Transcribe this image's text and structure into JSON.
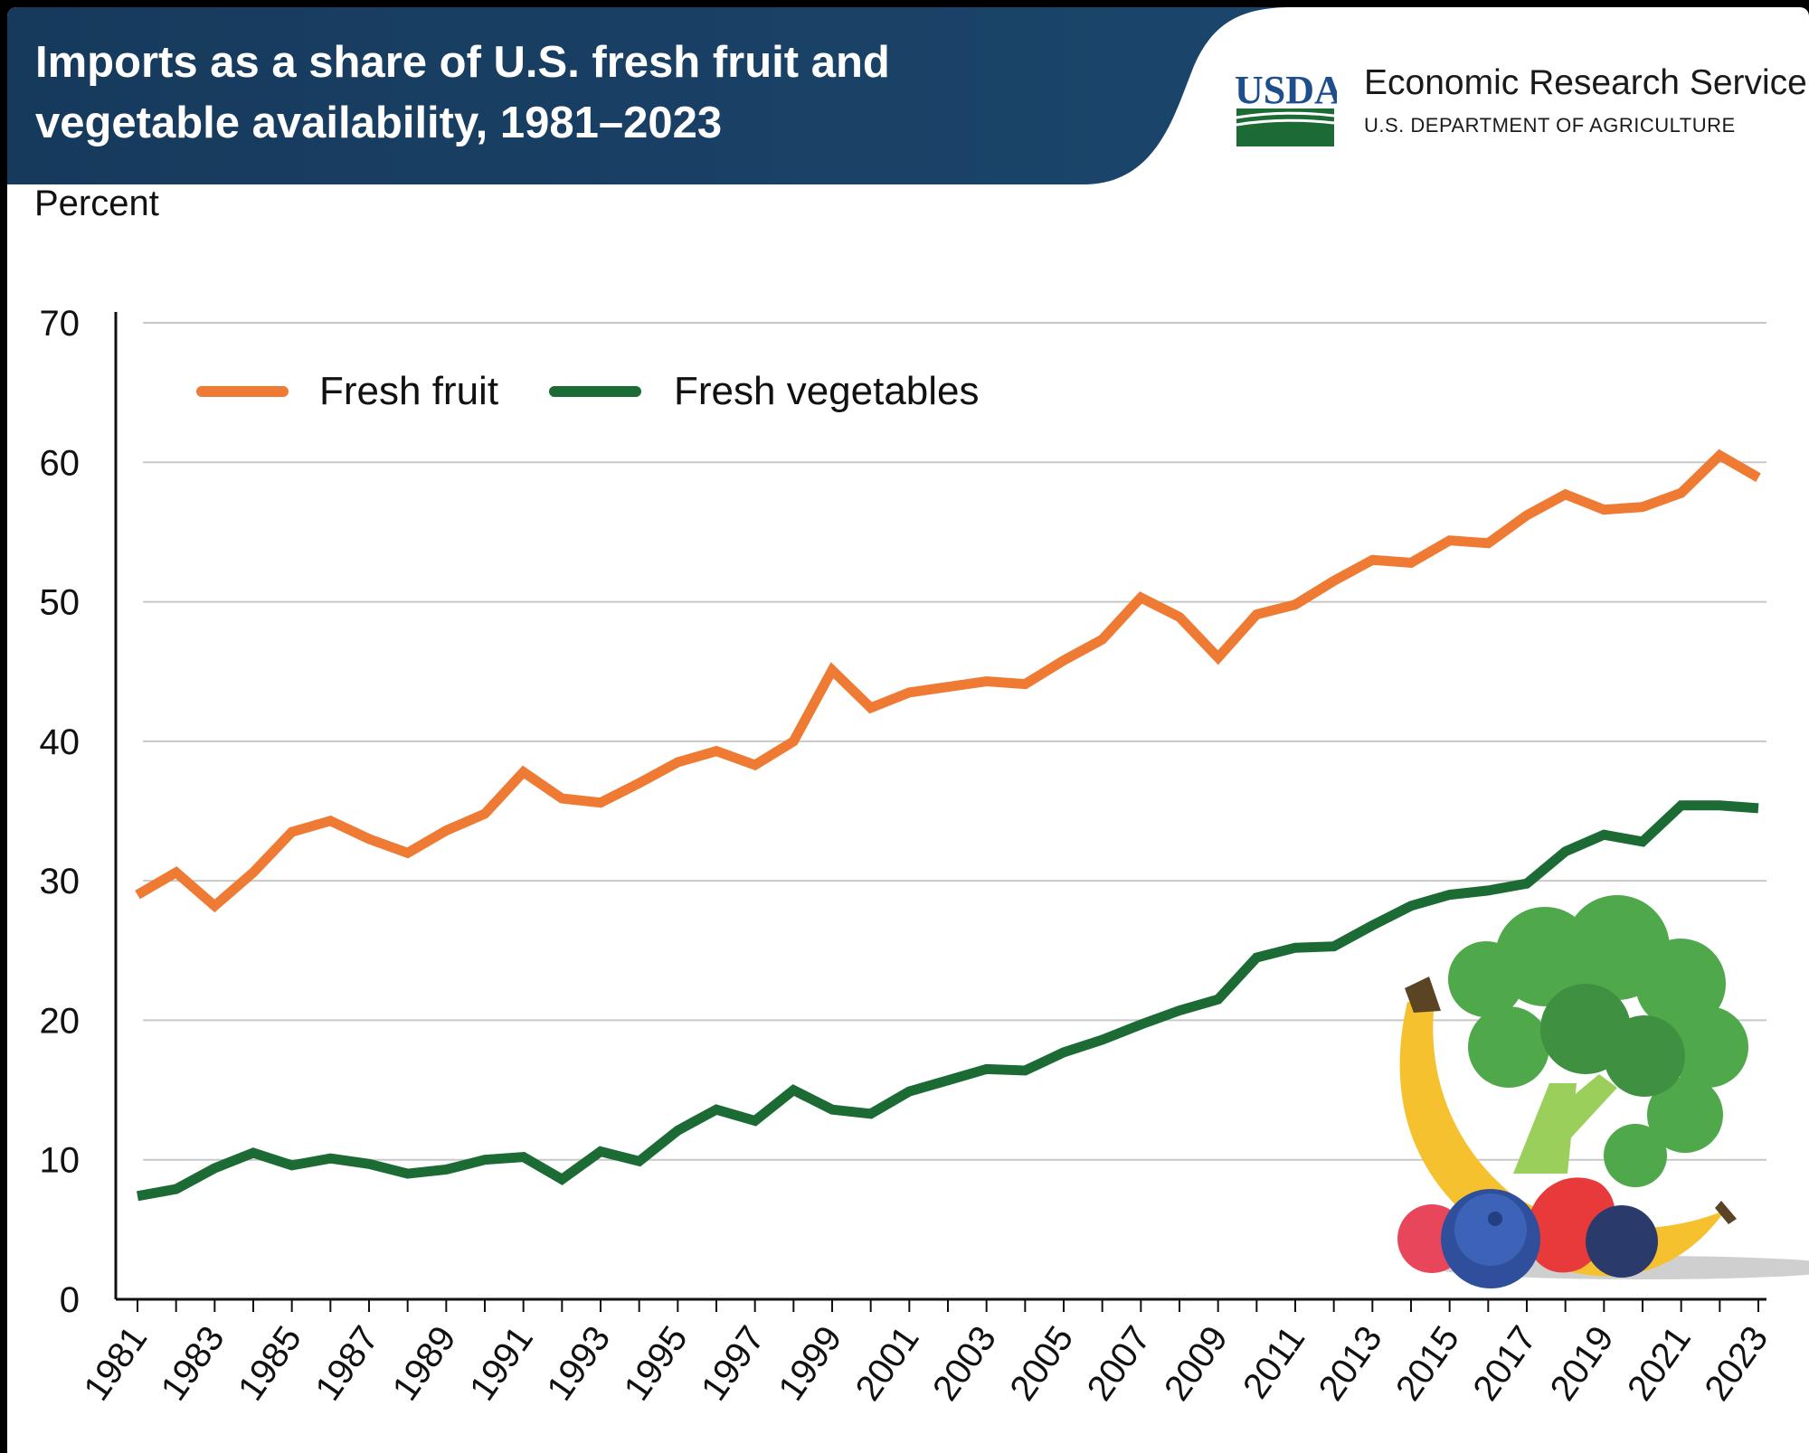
{
  "header": {
    "title": "Imports as a share of U.S. fresh fruit and vegetable availability, 1981–2023",
    "logo_text": "USDA",
    "agency_name": "Economic Research Service",
    "department": "U.S. DEPARTMENT OF AGRICULTURE"
  },
  "colors": {
    "header_bg": "#163a5c",
    "fruit": "#ee7a34",
    "vegetables": "#1c6b34",
    "grid": "#c8c8c8",
    "usda_blue": "#1f4e8c",
    "usda_green": "#1c6b34"
  },
  "chart_data": {
    "type": "line",
    "title": "Imports as a share of U.S. fresh fruit and vegetable availability, 1981–2023",
    "ylabel": "Percent",
    "xlabel": "",
    "ylim": [
      0,
      70
    ],
    "yticks": [
      0,
      10,
      20,
      30,
      40,
      50,
      60,
      70
    ],
    "grid": true,
    "legend": "top-left",
    "x": [
      1981,
      1982,
      1983,
      1984,
      1985,
      1986,
      1987,
      1988,
      1989,
      1990,
      1991,
      1992,
      1993,
      1994,
      1995,
      1996,
      1997,
      1998,
      1999,
      2000,
      2001,
      2002,
      2003,
      2004,
      2005,
      2006,
      2007,
      2008,
      2009,
      2010,
      2011,
      2012,
      2013,
      2014,
      2015,
      2016,
      2017,
      2018,
      2019,
      2020,
      2021,
      2022,
      2023
    ],
    "xticks": [
      "1981",
      "1983",
      "1985",
      "1987",
      "1989",
      "1991",
      "1993",
      "1995",
      "1997",
      "1999",
      "2001",
      "2003",
      "2005",
      "2007",
      "2009",
      "2011",
      "2013",
      "2015",
      "2017",
      "2019",
      "2021",
      "2023"
    ],
    "series": [
      {
        "name": "Fresh fruit",
        "values": [
          29.0,
          30.6,
          28.2,
          30.6,
          33.5,
          34.3,
          33.0,
          32.0,
          33.6,
          34.8,
          37.8,
          35.9,
          35.6,
          37.0,
          38.5,
          39.3,
          38.3,
          40.0,
          45.1,
          42.4,
          43.5,
          43.9,
          44.3,
          44.1,
          45.8,
          47.3,
          50.3,
          48.9,
          46.0,
          49.1,
          49.8,
          51.5,
          53.0,
          52.8,
          54.4,
          54.2,
          56.2,
          57.7,
          56.6,
          56.8,
          57.8,
          60.5,
          58.9
        ]
      },
      {
        "name": "Fresh vegetables",
        "values": [
          7.4,
          7.9,
          9.4,
          10.5,
          9.6,
          10.1,
          9.7,
          9.0,
          9.3,
          10.0,
          10.2,
          8.6,
          10.6,
          9.9,
          12.1,
          13.6,
          12.8,
          15.0,
          13.6,
          13.3,
          14.9,
          15.7,
          16.5,
          16.4,
          17.7,
          18.6,
          19.7,
          20.7,
          21.5,
          24.5,
          25.2,
          25.3,
          26.8,
          28.2,
          29.0,
          29.3,
          29.8,
          32.1,
          33.3,
          32.8,
          35.4,
          35.4,
          35.2
        ]
      }
    ]
  }
}
